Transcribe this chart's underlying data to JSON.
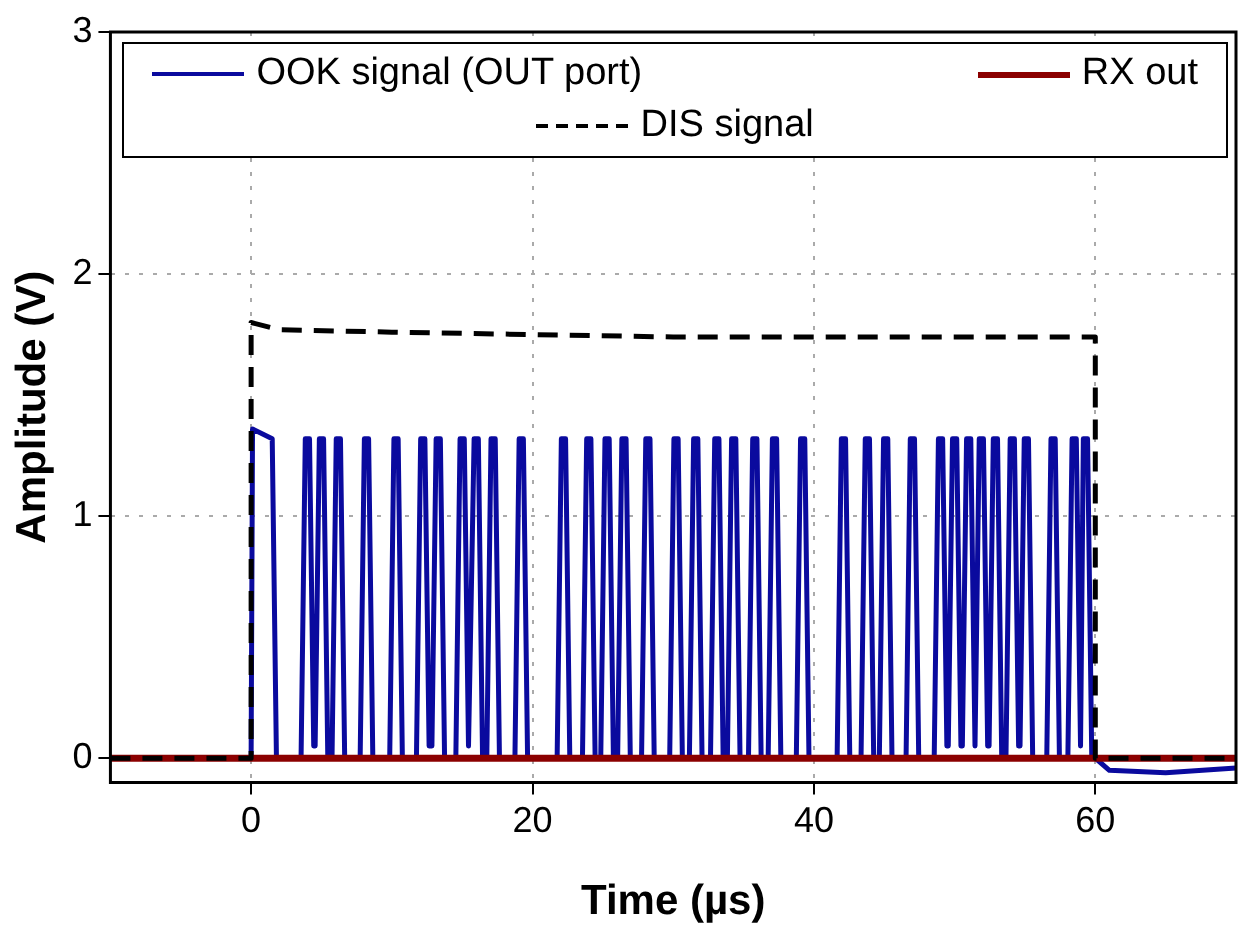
{
  "chart_data": {
    "type": "line",
    "xlabel": "Time (µs)",
    "ylabel": "Amplitude (V)",
    "xlim": [
      -10,
      70
    ],
    "ylim": [
      -0.1,
      3
    ],
    "xticks": [
      0,
      20,
      40,
      60
    ],
    "yticks": [
      0,
      1,
      2,
      3
    ],
    "grid": true,
    "legend": "top",
    "marker": "none",
    "series": [
      {
        "name": "OOK signal (OUT port)",
        "color": "#0a0a9e",
        "line_style": "solid",
        "x": [
          -10,
          0,
          0.1,
          1.5,
          1.8,
          3.55,
          3.85,
          4.15,
          4.45,
          4.55,
          4.85,
          5.15,
          5.45,
          5.75,
          6.05,
          6.35,
          6.65,
          7.75,
          8.05,
          8.35,
          8.65,
          9.85,
          10.15,
          10.45,
          10.75,
          11.75,
          12.05,
          12.35,
          12.65,
          12.85,
          13.15,
          13.45,
          13.75,
          14.55,
          14.85,
          15.15,
          15.45,
          15.55,
          15.85,
          16.15,
          16.45,
          16.75,
          17.05,
          17.35,
          17.65,
          18.75,
          19.05,
          19.35,
          19.65,
          21.75,
          22.05,
          22.35,
          22.65,
          23.55,
          23.85,
          24.15,
          24.45,
          24.85,
          25.15,
          25.45,
          25.75,
          26.05,
          26.35,
          26.65,
          26.95,
          27.75,
          28.05,
          28.35,
          28.65,
          29.75,
          30.05,
          30.35,
          30.65,
          31.15,
          31.45,
          31.75,
          32.05,
          32.65,
          32.95,
          33.25,
          33.55,
          33.85,
          34.15,
          34.45,
          34.75,
          35.35,
          35.65,
          35.95,
          36.25,
          36.75,
          37.05,
          37.35,
          37.65,
          38.75,
          39.05,
          39.35,
          39.65,
          41.65,
          41.95,
          42.25,
          42.55,
          43.35,
          43.65,
          43.95,
          44.25,
          44.65,
          44.95,
          45.25,
          45.55,
          46.55,
          46.85,
          47.15,
          47.45,
          48.55,
          48.85,
          49.15,
          49.45,
          49.55,
          49.85,
          50.15,
          50.45,
          50.55,
          50.85,
          51.15,
          51.45,
          51.5,
          51.75,
          52.05,
          52.35,
          52.45,
          52.75,
          53.05,
          53.35,
          53.65,
          53.95,
          54.25,
          54.55,
          54.65,
          54.95,
          55.25,
          55.55,
          56.55,
          56.85,
          57.15,
          57.45,
          58.05,
          58.35,
          58.65,
          58.95,
          59.0,
          59.15,
          59.45,
          59.75,
          60,
          61,
          65,
          70
        ],
        "values": [
          0,
          0,
          1.36,
          1.32,
          0,
          0,
          1.32,
          1.32,
          0.05,
          0.05,
          1.32,
          1.32,
          0,
          0,
          1.32,
          1.32,
          0,
          0,
          1.32,
          1.32,
          0,
          0,
          1.32,
          1.32,
          0,
          0,
          1.32,
          1.32,
          0.05,
          0.05,
          1.32,
          1.32,
          0,
          0,
          1.32,
          1.32,
          0.05,
          0.05,
          1.32,
          1.32,
          0,
          0,
          1.32,
          1.32,
          0,
          0,
          1.32,
          1.32,
          0,
          0,
          1.32,
          1.32,
          0,
          0,
          1.32,
          1.32,
          0,
          0,
          1.32,
          1.32,
          0,
          0,
          1.32,
          1.32,
          0,
          0,
          1.32,
          1.32,
          0,
          0,
          1.32,
          1.32,
          0,
          0,
          1.32,
          1.32,
          0,
          0,
          1.32,
          1.32,
          0,
          0,
          1.32,
          1.32,
          0,
          0,
          1.32,
          1.32,
          0,
          0,
          1.32,
          1.32,
          0,
          0,
          1.32,
          1.32,
          0,
          0,
          1.32,
          1.32,
          0,
          0,
          1.32,
          1.32,
          0,
          0,
          1.32,
          1.32,
          0,
          0,
          1.32,
          1.32,
          0,
          0,
          1.32,
          1.32,
          0.05,
          0.05,
          1.32,
          1.32,
          0.05,
          0.05,
          1.32,
          1.32,
          0.05,
          0.05,
          1.32,
          1.32,
          0.05,
          0.05,
          1.32,
          1.32,
          0,
          0,
          1.32,
          1.32,
          0.05,
          0.05,
          1.32,
          1.32,
          0,
          0,
          1.32,
          1.32,
          0,
          0,
          1.32,
          1.32,
          0.05,
          0.05,
          1.32,
          1.32,
          0,
          0,
          -0.05,
          -0.06,
          -0.04
        ]
      },
      {
        "name": "RX out",
        "color": "#8b0000",
        "line_style": "solid",
        "x": [
          -10,
          70
        ],
        "values": [
          0,
          0
        ]
      },
      {
        "name": "DIS signal",
        "color": "#000000",
        "line_style": "dashed",
        "x": [
          -10,
          0,
          0,
          2,
          10,
          30,
          50,
          60,
          60,
          70
        ],
        "values": [
          0,
          0,
          1.8,
          1.77,
          1.76,
          1.74,
          1.74,
          1.74,
          0,
          0
        ]
      }
    ]
  }
}
